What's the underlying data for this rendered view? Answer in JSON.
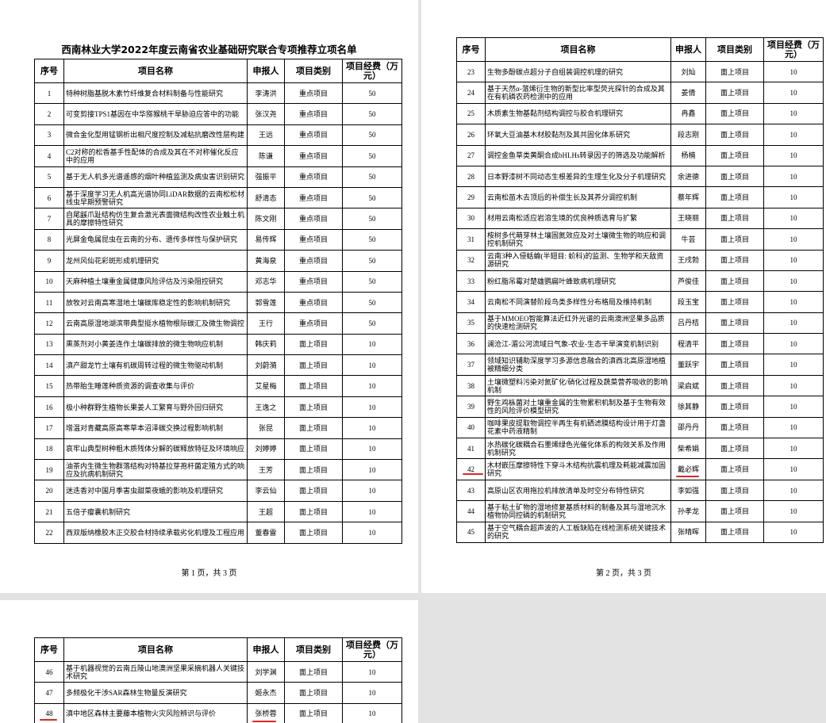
{
  "pages": [
    {
      "title": "西南林业大学2022年度云南省农业基础研究联合专项推荐立项名单",
      "header": [
        "序号",
        "项目名称",
        "申报人",
        "项目类别",
        "项目经费（万元）"
      ],
      "rows": [
        [
          1,
          "特种树脂基脱木素竹纤维复合材料制备与性能研究",
          "李涛洪",
          "重点项目",
          50
        ],
        [
          2,
          "可变剪接TPS1基因在中华猕猴桃干旱胁迫应答中的功能",
          "张汉尧",
          "重点项目",
          50
        ],
        [
          3,
          "微合金化型用锰钢析出相尺度控制及减粘抗磨改性层构建",
          "王远",
          "重点项目",
          50
        ],
        [
          4,
          "C2对称的松香基手性配体的合成及其在不对称催化反应中的应用",
          "陈谦",
          "重点项目",
          50
        ],
        [
          5,
          "基于无人机多光谱遥感的烟叶种植监测及病虫害识别研究",
          "强振平",
          "重点项目",
          50
        ],
        [
          6,
          "基于深度学习无人机高光谱协同LiDAR数据的云南松松材线虫早期预警研究",
          "舒清态",
          "重点项目",
          50
        ],
        [
          7,
          "自尾鼷爪趾结构仿生复合激光表面微结构改性农业触土机具的摩擦特性研究",
          "陈文刚",
          "重点项目",
          50
        ],
        [
          8,
          "光屏金龟属昆虫在云南的分布、遗传多样性与保护研究",
          "易传辉",
          "重点项目",
          50
        ],
        [
          9,
          "龙州风仙花彩斑形成机理研究",
          "黄海泉",
          "重点项目",
          50
        ],
        [
          10,
          "天麻种植土壤重金属健康风险评估及污染阻控研究",
          "邓志华",
          "重点项目",
          50
        ],
        [
          11,
          "放牧对云南高寒湿地土壤碳库稳定性的影响机制研究",
          "郭雪莲",
          "重点项目",
          50
        ],
        [
          12,
          "云南高原湿地湖滨带典型挺水植物根际碳汇及微生物调控",
          "王行",
          "重点项目",
          50
        ],
        [
          13,
          "熏蒸剂对小黄姜连作土壤碳排放的微生物响应机制",
          "韩庆莉",
          "面上项目",
          10
        ],
        [
          14,
          "滇产甜龙竹土壤有机碳周转过程的微生物驱动机制",
          "刘蔚漪",
          "面上项目",
          10
        ],
        [
          15,
          "热带胎生睡莲种质资源的调查收集与评价",
          "艾星梅",
          "面上项目",
          10
        ],
        [
          16,
          "极小种群野生植物长果姜人工繁育与野外回归研究",
          "王逸之",
          "面上项目",
          10
        ],
        [
          17,
          "增温对青藏高原高寒草本沼泽碳交换过程影响机制",
          "张昆",
          "面上项目",
          10
        ],
        [
          18,
          "哀牢山典型树种粗木质残体分解的碳释放特征及环境响应",
          "刘婷婷",
          "面上项目",
          10
        ],
        [
          19,
          "油茶内生微生物群落结构对特基拉芽孢杆菌定殖方式的响应及抗病机制研究",
          "王芳",
          "面上项目",
          10
        ],
        [
          20,
          "迷迭香对中国月季害虫甜菜夜蛾的影响及机理研究",
          "李云仙",
          "面上项目",
          10
        ],
        [
          21,
          "五倍子瘿囊机制研究",
          "王超",
          "面上项目",
          10
        ],
        [
          22,
          "西双版纳橡胶木正交胶合材持续承载劣化机理及工程应用",
          "董春雷",
          "面上项目",
          10
        ]
      ],
      "footer": "第 1 页，共 3 页"
    },
    {
      "header": [
        "序号",
        "项目名称",
        "申报人",
        "项目类别",
        "项目经费（万元）"
      ],
      "rows": [
        [
          23,
          "生物多酚碳点超分子自组装调控机理的研究",
          "刘灿",
          "面上项目",
          10
        ],
        [
          24,
          "基于天然α-蒎烯衍生物的新型比率型荧光探针的合成及其在有机磷农药检测中的应用",
          "姜倩",
          "面上项目",
          10
        ],
        [
          25,
          "木质素生物基黏剂结构调控与胶合机理研究",
          "冉鑫",
          "面上项目",
          10
        ],
        [
          26,
          "环氧大豆油基木材胶黏剂及其共固化体系研究",
          "段志刚",
          "面上项目",
          10
        ],
        [
          27,
          "调控金鱼草类黄酮合成bHLHs转录因子的筛选及功能解析",
          "杨楠",
          "面上项目",
          10
        ],
        [
          28,
          "日本野漆树不同动态生根差异的生理生化及分子机理研究",
          "余进德",
          "面上项目",
          10
        ],
        [
          29,
          "云南松苗木去顶后的补偿生长及其养分调控机制",
          "蔡年辉",
          "面上项目",
          10
        ],
        [
          30,
          "材用云南松适应岩溶生境的优良种质选育与扩繁",
          "王晓丽",
          "面上项目",
          10
        ],
        [
          31,
          "桉树多代萌芽林土壤固氮效应及对土壤微生物的响应和调控机制研究",
          "牛芸",
          "面上项目",
          10
        ],
        [
          32,
          "云南3种入侵蛞蝓(半翅目: 蚧科)的监测、生物学和天敌资源研究",
          "王戌勃",
          "面上项目",
          10
        ],
        [
          33,
          "粉红脂吊霉对楚雄鹦扁叶蜂致病机理研究",
          "芦俊佳",
          "面上项目",
          10
        ],
        [
          34,
          "云南松不同演替阶段鸟类多样性分布格局及维持机制",
          "段玉宝",
          "面上项目",
          10
        ],
        [
          35,
          "基于MMOEO智能算法近红外光谱的云南澳洲坚果多品质的快速检测研究",
          "吕丹桔",
          "面上项目",
          10
        ],
        [
          36,
          "澜沧江-湄公河流域日气象-农业-生态干旱演变机制识别",
          "程清平",
          "面上项目",
          10
        ],
        [
          37,
          "领域知识辅助深度学习多源信息融合的滇西北高原湿地植被精细分类",
          "董跃宇",
          "面上项目",
          10
        ],
        [
          38,
          "土壤微塑料污染对氮矿化/硝化过程及蔬菜营养吸收的影响机制",
          "梁启斌",
          "面上项目",
          10
        ],
        [
          39,
          "野生鸡枞菌对土壤重金属的生物累积机制及基于生物有效性的风险评价模型研究",
          "徐其静",
          "面上项目",
          10
        ],
        [
          40,
          "咖啡果皮提取物调控半再生有机硒滤膜结构设计用于灯盏花素中药液精制",
          "邵丹丹",
          "面上项目",
          10
        ],
        [
          41,
          "水热碳化碳耦合石墨烯绿色光催化体系的构效关系及作用机制研究",
          "柴希娟",
          "面上项目",
          10
        ],
        [
          42,
          "木材嵌压摩擦特性下穿斗木结构抗震机理及耗能减震加固研究",
          "戴必辉",
          "面上项目",
          10
        ],
        [
          43,
          "高原山区农用拖拉机排放清单及时空分布特性研究",
          "李如强",
          "面上项目",
          10
        ],
        [
          44,
          "基于粘土矿物的湿地修复基质材料的制备及其与湿地沉水植物协同控磷的机制研究",
          "孙孝龙",
          "面上项目",
          10
        ],
        [
          45,
          "基于空气耦合超声波的人工板缺陷在线检测系统关键技术的研究",
          "张晴晖",
          "面上项目",
          10
        ]
      ],
      "footer": "第 2 页，共 3 页"
    },
    {
      "header": [
        "序号",
        "项目名称",
        "申报人",
        "项目类别",
        "项目经费（万元）"
      ],
      "rows": [
        [
          46,
          "基于机器视觉的云南丘陵山地澳洲坚果采摘机器人关键技术研究",
          "刘学渊",
          "面上项目",
          10
        ],
        [
          47,
          "多频极化干涉SAR森林生物量反演研究",
          "姬永杰",
          "面上项目",
          10
        ],
        [
          48,
          "滇中地区森林主要藤本植物火灾风险辨识与评价",
          "张桥蓉",
          "面上项目",
          10
        ]
      ]
    }
  ]
}
